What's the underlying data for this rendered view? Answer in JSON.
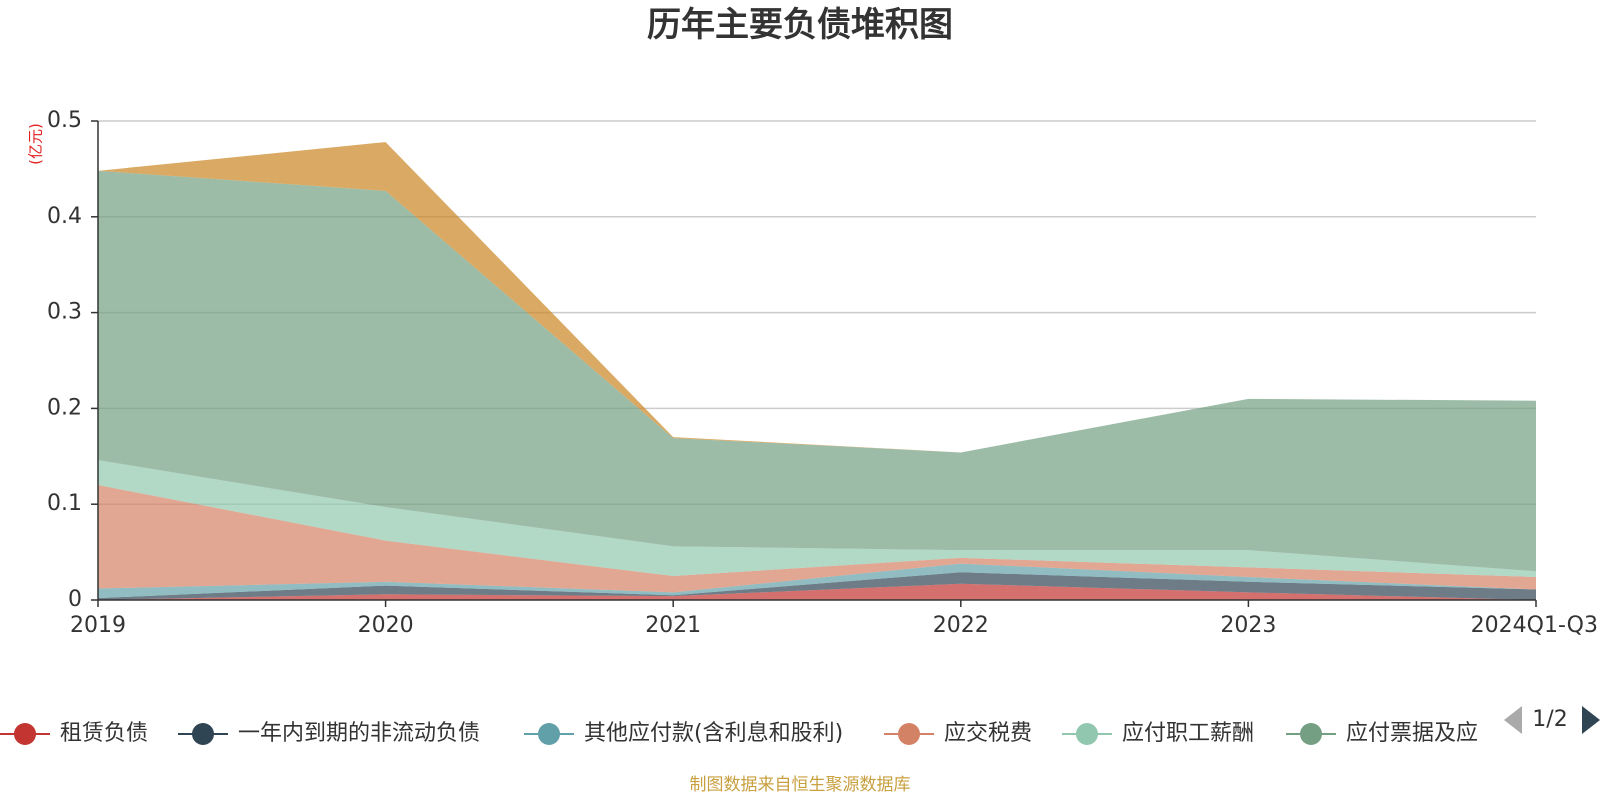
{
  "chart_data": {
    "type": "area",
    "stacked": true,
    "title": "历年主要负债堆积图",
    "y_unit": "(亿元)",
    "categories": [
      "2019",
      "2020",
      "2021",
      "2022",
      "2023",
      "2024Q1-Q3"
    ],
    "ylim": [
      0,
      0.5
    ],
    "y_ticks": [
      "0",
      "0.1",
      "0.2",
      "0.3",
      "0.4",
      "0.5"
    ],
    "grid": true,
    "legend_position": "bottom",
    "series": [
      {
        "name": "租赁负债",
        "color": "#c23531",
        "values": [
          0.0,
          0.006,
          0.004,
          0.017,
          0.008,
          0.0
        ]
      },
      {
        "name": "一年内到期的非流动负债",
        "color": "#2f4554",
        "values": [
          0.002,
          0.009,
          0.001,
          0.012,
          0.011,
          0.011
        ]
      },
      {
        "name": "其他应付款(含利息和股利)",
        "color": "#61a0a8",
        "values": [
          0.01,
          0.004,
          0.003,
          0.009,
          0.005,
          0.0
        ]
      },
      {
        "name": "应交税费",
        "color": "#d48265",
        "values": [
          0.108,
          0.043,
          0.017,
          0.006,
          0.01,
          0.013
        ]
      },
      {
        "name": "应付职工薪酬",
        "color": "#91c7ae",
        "values": [
          0.026,
          0.035,
          0.031,
          0.008,
          0.018,
          0.006
        ]
      },
      {
        "name": "应付票据及应付账款",
        "color": "#749f83",
        "values": [
          0.302,
          0.33,
          0.113,
          0.102,
          0.158,
          0.178
        ]
      },
      {
        "name": "",
        "color": "#ca8622",
        "values": [
          0.0,
          0.051,
          0.001,
          0.0,
          0.0,
          0.0
        ]
      }
    ]
  },
  "legend": {
    "items": [
      "租赁负债",
      "一年内到期的非流动负债",
      "其他应付款(含利息和股利)",
      "应交税费",
      "应付职工薪酬",
      "应付票据及应"
    ],
    "page": "1/2"
  },
  "source_note": "制图数据来自恒生聚源数据库"
}
